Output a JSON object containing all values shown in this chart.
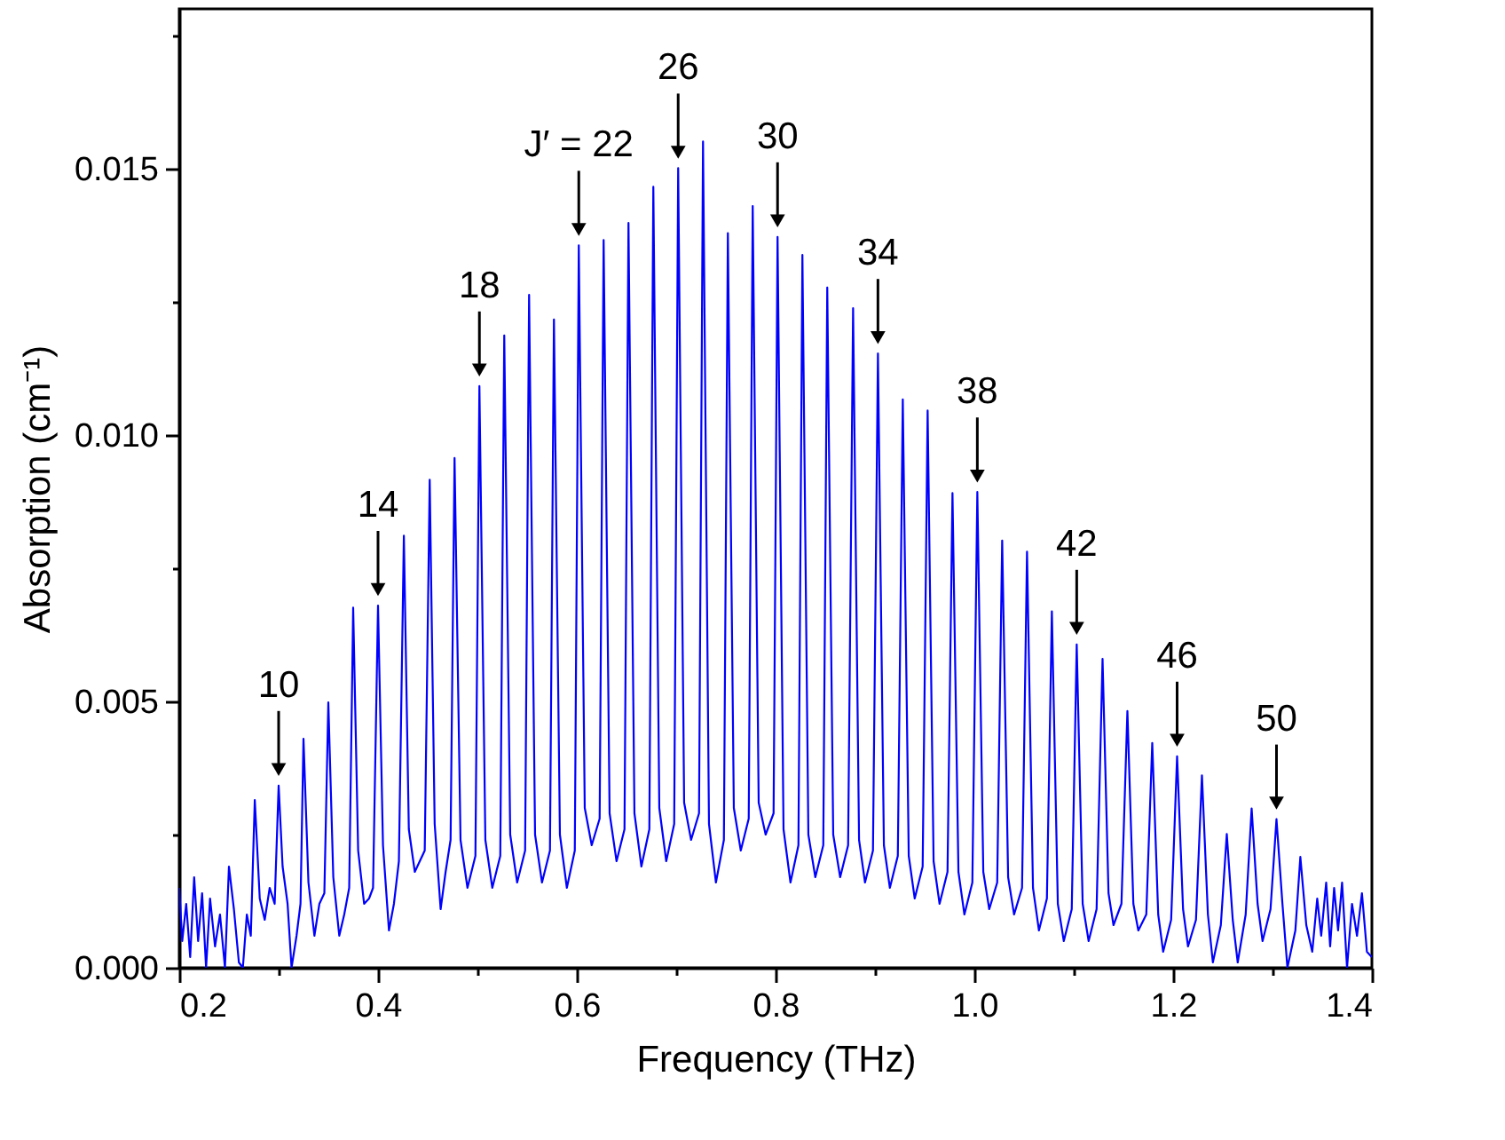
{
  "chart_data": {
    "type": "line",
    "xlabel": "Frequency (THz)",
    "ylabel": "Absorption (cm⁻¹)",
    "xlim": [
      0.2,
      1.4
    ],
    "ylim": [
      0,
      0.018
    ],
    "xticks": [
      0.2,
      {
        "value": 0.3,
        "label": null
      },
      0.4,
      {
        "value": 0.5,
        "label": null
      },
      0.6,
      {
        "value": 0.7,
        "label": null
      },
      0.8,
      {
        "value": 0.9,
        "label": null
      },
      {
        "value": 1.0,
        "label": "1.0"
      },
      {
        "value": 1.1,
        "label": null
      },
      1.2,
      {
        "value": 1.3,
        "label": null
      },
      1.4
    ],
    "yticks": [
      {
        "value": 0,
        "label": "0.000"
      },
      {
        "value": 0.0025,
        "label": null
      },
      0.005,
      {
        "value": 0.0075,
        "label": null
      },
      {
        "value": 0.01,
        "label": "0.010"
      },
      {
        "value": 0.0125,
        "label": null
      },
      0.015,
      {
        "value": 0.0175,
        "label": null
      }
    ],
    "grid": false,
    "marker": "none",
    "line_style": "solid",
    "x": [
      0.2,
      0.203,
      0.207,
      0.211,
      0.215,
      0.219,
      0.223,
      0.227,
      0.231,
      0.236,
      0.241,
      0.246,
      0.25,
      0.255,
      0.26,
      0.264,
      0.268,
      0.272,
      0.276,
      0.281,
      0.286,
      0.291,
      0.296,
      0.3,
      0.304,
      0.309,
      0.313,
      0.318,
      0.322,
      0.325,
      0.33,
      0.336,
      0.341,
      0.346,
      0.35,
      0.355,
      0.361,
      0.366,
      0.371,
      0.375,
      0.38,
      0.386,
      0.391,
      0.395,
      0.4,
      0.405,
      0.411,
      0.416,
      0.421,
      0.426,
      0.431,
      0.437,
      0.442,
      0.447,
      0.452,
      0.457,
      0.463,
      0.468,
      0.473,
      0.477,
      0.483,
      0.49,
      0.498,
      0.502,
      0.508,
      0.515,
      0.523,
      0.527,
      0.533,
      0.54,
      0.548,
      0.552,
      0.558,
      0.565,
      0.573,
      0.577,
      0.583,
      0.59,
      0.598,
      0.602,
      0.608,
      0.615,
      0.623,
      0.627,
      0.633,
      0.64,
      0.648,
      0.652,
      0.658,
      0.665,
      0.673,
      0.677,
      0.683,
      0.69,
      0.698,
      0.702,
      0.708,
      0.715,
      0.723,
      0.727,
      0.733,
      0.74,
      0.748,
      0.752,
      0.758,
      0.765,
      0.773,
      0.777,
      0.783,
      0.79,
      0.798,
      0.802,
      0.808,
      0.815,
      0.823,
      0.827,
      0.833,
      0.84,
      0.848,
      0.852,
      0.858,
      0.865,
      0.873,
      0.878,
      0.884,
      0.89,
      0.898,
      0.903,
      0.909,
      0.915,
      0.923,
      0.928,
      0.934,
      0.94,
      0.948,
      0.953,
      0.959,
      0.965,
      0.973,
      0.978,
      0.984,
      0.99,
      0.998,
      1.003,
      1.009,
      1.015,
      1.023,
      1.028,
      1.034,
      1.04,
      1.048,
      1.053,
      1.059,
      1.065,
      1.073,
      1.078,
      1.084,
      1.09,
      1.098,
      1.103,
      1.109,
      1.115,
      1.123,
      1.129,
      1.135,
      1.14,
      1.148,
      1.154,
      1.16,
      1.165,
      1.173,
      1.179,
      1.185,
      1.19,
      1.198,
      1.204,
      1.21,
      1.215,
      1.223,
      1.229,
      1.235,
      1.24,
      1.248,
      1.254,
      1.26,
      1.265,
      1.273,
      1.279,
      1.285,
      1.29,
      1.298,
      1.304,
      1.31,
      1.315,
      1.323,
      1.328,
      1.334,
      1.34,
      1.345,
      1.349,
      1.354,
      1.358,
      1.362,
      1.366,
      1.37,
      1.375,
      1.38,
      1.385,
      1.39,
      1.395,
      1.4
    ],
    "series": [
      {
        "color": "#0000ff",
        "values": [
          0.0015,
          0.0005,
          0.0012,
          0.0002,
          0.0017,
          0.0005,
          0.0014,
          0.0,
          0.0013,
          0.0004,
          0.001,
          0.0,
          0.0019,
          0.0011,
          0.0001,
          0.0,
          0.001,
          0.0006,
          0.00315,
          0.0013,
          0.0009,
          0.0015,
          0.0012,
          0.00342,
          0.0019,
          0.0012,
          0.0,
          0.0006,
          0.0012,
          0.0043,
          0.0016,
          0.0006,
          0.0012,
          0.0014,
          0.00498,
          0.0017,
          0.0006,
          0.001,
          0.0015,
          0.00676,
          0.0022,
          0.0012,
          0.0013,
          0.0015,
          0.0068,
          0.0023,
          0.0007,
          0.0012,
          0.002,
          0.00811,
          0.0026,
          0.0018,
          0.002,
          0.0022,
          0.00916,
          0.0027,
          0.0011,
          0.0018,
          0.0024,
          0.00957,
          0.0024,
          0.0015,
          0.0021,
          0.01092,
          0.0024,
          0.0015,
          0.0021,
          0.01187,
          0.0025,
          0.0016,
          0.0022,
          0.01263,
          0.0025,
          0.0016,
          0.0022,
          0.01217,
          0.0025,
          0.0015,
          0.0022,
          0.01356,
          0.003,
          0.0023,
          0.0028,
          0.01366,
          0.0029,
          0.002,
          0.0026,
          0.01398,
          0.0029,
          0.0019,
          0.0026,
          0.01466,
          0.003,
          0.002,
          0.0027,
          0.01501,
          0.0031,
          0.0024,
          0.0029,
          0.01551,
          0.0027,
          0.0016,
          0.0024,
          0.01379,
          0.003,
          0.0022,
          0.0028,
          0.0143,
          0.0031,
          0.0025,
          0.0029,
          0.01372,
          0.0026,
          0.0016,
          0.0023,
          0.01338,
          0.0025,
          0.0017,
          0.0023,
          0.01277,
          0.0025,
          0.0017,
          0.0023,
          0.01238,
          0.0024,
          0.0016,
          0.0022,
          0.01153,
          0.0023,
          0.0015,
          0.0021,
          0.01067,
          0.0021,
          0.0013,
          0.0019,
          0.01046,
          0.002,
          0.0012,
          0.0018,
          0.00891,
          0.0018,
          0.001,
          0.0016,
          0.00893,
          0.0018,
          0.0011,
          0.0016,
          0.00802,
          0.0017,
          0.001,
          0.0015,
          0.00781,
          0.0015,
          0.0007,
          0.0013,
          0.00669,
          0.0012,
          0.0005,
          0.0011,
          0.00607,
          0.0012,
          0.0005,
          0.0011,
          0.0058,
          0.0014,
          0.0008,
          0.0012,
          0.00482,
          0.0012,
          0.0007,
          0.001,
          0.00422,
          0.001,
          0.0003,
          0.0009,
          0.00397,
          0.0011,
          0.0004,
          0.0009,
          0.00361,
          0.001,
          0.0001,
          0.0008,
          0.00251,
          0.0009,
          0.0001,
          0.001,
          0.00299,
          0.0012,
          0.0005,
          0.0011,
          0.00279,
          0.0012,
          0.0,
          0.0007,
          0.00208,
          0.0008,
          0.0003,
          0.0013,
          0.0006,
          0.0016,
          0.0004,
          0.0015,
          0.0007,
          0.0016,
          0.0,
          0.0012,
          0.0006,
          0.0014,
          0.0003,
          0.0002
        ]
      }
    ],
    "annotations": [
      {
        "text": "10",
        "x": 0.3,
        "y": 0.00342
      },
      {
        "text": "14",
        "x": 0.4,
        "y": 0.0068
      },
      {
        "text": "18",
        "x": 0.502,
        "y": 0.01092
      },
      {
        "text": "J′ = 22",
        "x": 0.602,
        "y": 0.01356
      },
      {
        "text": "26",
        "x": 0.702,
        "y": 0.01501
      },
      {
        "text": "30",
        "x": 0.802,
        "y": 0.01372
      },
      {
        "text": "34",
        "x": 0.903,
        "y": 0.01153
      },
      {
        "text": "38",
        "x": 1.003,
        "y": 0.00893
      },
      {
        "text": "42",
        "x": 1.103,
        "y": 0.00607
      },
      {
        "text": "46",
        "x": 1.204,
        "y": 0.00397
      },
      {
        "text": "50",
        "x": 1.304,
        "y": 0.00279
      }
    ]
  }
}
